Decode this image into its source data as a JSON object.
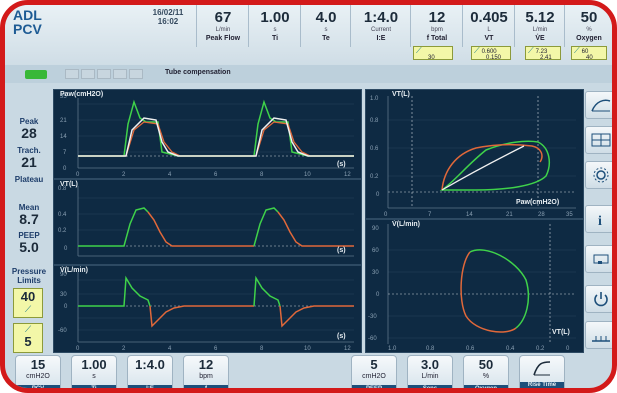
{
  "header": {
    "mode_line1": "ADL",
    "mode_line2": "PCV",
    "date": "16/02/11",
    "time": "16:02",
    "params": [
      {
        "value": "67",
        "unit": "L/min",
        "name": "Peak Flow"
      },
      {
        "value": "1.00",
        "unit": "s",
        "name": "Ti"
      },
      {
        "value": "4.0",
        "unit": "s",
        "name": "Te"
      },
      {
        "value": "1:4.0",
        "unit": "Current",
        "name": "I:E"
      },
      {
        "value": "12",
        "unit": "bpm",
        "name": "f Total"
      },
      {
        "value": "0.405",
        "unit": "L",
        "name": "VT"
      },
      {
        "value": "5.12",
        "unit": "L/min",
        "name": "V̇E"
      },
      {
        "value": "50",
        "unit": "%",
        "name": "Oxygen"
      }
    ],
    "alarms": [
      {
        "top": "",
        "bottom": "30"
      },
      {
        "top": "0.600",
        "bottom": "0.150"
      },
      {
        "top": "7.23",
        "bottom": "2.41"
      },
      {
        "top": "60",
        "bottom": "40"
      }
    ]
  },
  "toolbar": {
    "tube_compensation_label": "Tube compensation"
  },
  "left_panel": {
    "peak_label": "Peak",
    "peak_value": "28",
    "trach_label": "Trach.",
    "trach_value": "21",
    "plateau_label": "Plateau",
    "mean_label": "Mean",
    "mean_value": "8.7",
    "peep_label": "PEEP",
    "peep_value": "5.0",
    "pressure_limits_label": "Pressure Limits",
    "pressure_limit_value": "40",
    "low_limit_value": "5"
  },
  "graphs": {
    "paw_title": "Paw(cmH2O)",
    "vt_title": "VT(L)",
    "flow_title": "V̇(L/min)",
    "loop1_title": "VT(L)",
    "loop1_xlabel": "Paw(cmH2O)",
    "loop2_title": "V̇(L/min)",
    "loop2_xlabel": "VT(L)",
    "time_unit": "(s)"
  },
  "bottom_bar": {
    "buttons": [
      {
        "value": "15",
        "unit": "cmH2O",
        "name": "PCV"
      },
      {
        "value": "1.00",
        "unit": "s",
        "name": "Ti"
      },
      {
        "value": "1:4.0",
        "unit": "",
        "name": "I:E"
      },
      {
        "value": "12",
        "unit": "bpm",
        "name": "f"
      },
      {
        "value": "5",
        "unit": "cmH2O",
        "name": "PEEP"
      },
      {
        "value": "3.0",
        "unit": "L/min",
        "name": "Sens"
      },
      {
        "value": "50",
        "unit": "%",
        "name": "Oxygen"
      },
      {
        "value": "",
        "unit": "",
        "name": "Rise Time"
      }
    ]
  },
  "colors": {
    "frame": "#d31a1a",
    "graph_bg": "#0e2a43",
    "curve_green": "#3fd24a",
    "curve_orange": "#e0683a",
    "curve_white": "#f0f0f0",
    "title_blue": "#1d5b94"
  }
}
